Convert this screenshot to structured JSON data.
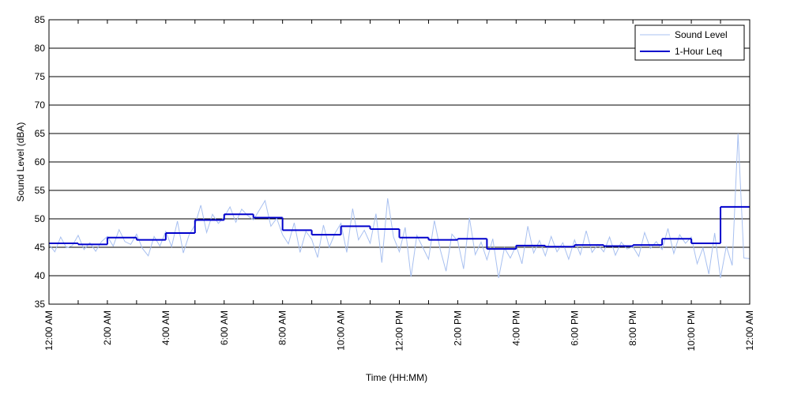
{
  "chart_data": {
    "type": "line",
    "xlabel": "Time (HH:MM)",
    "ylabel": "Sound Level (dBA)",
    "xlim": [
      0,
      24
    ],
    "xticks": [
      {
        "value": 0,
        "label": "12:00 AM"
      },
      {
        "value": 2,
        "label": "2:00 AM"
      },
      {
        "value": 4,
        "label": "4:00 AM"
      },
      {
        "value": 6,
        "label": "6:00 AM"
      },
      {
        "value": 8,
        "label": "8:00 AM"
      },
      {
        "value": 10,
        "label": "10:00 AM"
      },
      {
        "value": 12,
        "label": "12:00 PM"
      },
      {
        "value": 14,
        "label": "2:00 PM"
      },
      {
        "value": 16,
        "label": "4:00 PM"
      },
      {
        "value": 18,
        "label": "6:00 PM"
      },
      {
        "value": 20,
        "label": "8:00 PM"
      },
      {
        "value": 22,
        "label": "10:00 PM"
      },
      {
        "value": 24,
        "label": "12:00 AM"
      }
    ],
    "ylim": [
      35,
      85
    ],
    "yticks": [
      35,
      40,
      45,
      50,
      55,
      60,
      65,
      70,
      75,
      80,
      85
    ],
    "grid": true,
    "legend": "upper right",
    "series": [
      {
        "name": "Sound Level",
        "color": "#a8c0f0",
        "step": false,
        "x": [
          0,
          0.2,
          0.4,
          0.6,
          0.8,
          1,
          1.2,
          1.4,
          1.6,
          1.8,
          2,
          2.2,
          2.4,
          2.6,
          2.8,
          3,
          3.2,
          3.4,
          3.6,
          3.8,
          4,
          4.2,
          4.4,
          4.6,
          4.8,
          5,
          5.2,
          5.4,
          5.6,
          5.8,
          6,
          6.2,
          6.4,
          6.6,
          6.8,
          7,
          7.2,
          7.4,
          7.6,
          7.8,
          8,
          8.2,
          8.4,
          8.6,
          8.8,
          9,
          9.2,
          9.4,
          9.6,
          9.8,
          10,
          10.2,
          10.4,
          10.6,
          10.8,
          11,
          11.2,
          11.4,
          11.6,
          11.8,
          12,
          12.2,
          12.4,
          12.6,
          12.8,
          13,
          13.2,
          13.4,
          13.6,
          13.8,
          14,
          14.2,
          14.4,
          14.6,
          14.8,
          15,
          15.2,
          15.4,
          15.6,
          15.8,
          16,
          16.2,
          16.4,
          16.6,
          16.8,
          17,
          17.2,
          17.4,
          17.6,
          17.8,
          18,
          18.2,
          18.4,
          18.6,
          18.8,
          19,
          19.2,
          19.4,
          19.6,
          19.8,
          20,
          20.2,
          20.4,
          20.6,
          20.8,
          21,
          21.2,
          21.4,
          21.6,
          21.8,
          22,
          22.2,
          22.4,
          22.6,
          22.8,
          23,
          23.2,
          23.4,
          23.6,
          23.8,
          24
        ],
        "values": [
          45.5,
          44.2,
          46.8,
          44.9,
          45.3,
          47.1,
          44.6,
          45.8,
          44.3,
          46.0,
          46.9,
          45.2,
          48.1,
          46.0,
          45.5,
          47.3,
          44.8,
          43.5,
          46.9,
          45.2,
          47.8,
          45.1,
          49.6,
          44.0,
          47.2,
          48.9,
          52.4,
          47.6,
          50.8,
          49.2,
          50.3,
          52.1,
          49.4,
          51.7,
          50.6,
          49.8,
          51.5,
          53.2,
          48.7,
          50.1,
          47.2,
          45.6,
          49.3,
          44.1,
          47.8,
          46.4,
          43.2,
          48.9,
          45.0,
          47.5,
          49.2,
          44.1,
          51.8,
          46.3,
          48.0,
          45.7,
          50.9,
          42.3,
          53.6,
          46.8,
          44.2,
          48.5,
          39.8,
          47.1,
          45.0,
          42.9,
          49.7,
          44.6,
          40.8,
          47.3,
          46.1,
          41.2,
          50.2,
          43.7,
          45.9,
          42.8,
          46.5,
          39.6,
          44.9,
          43.1,
          45.3,
          42.1,
          48.7,
          44.0,
          46.2,
          43.5,
          46.9,
          44.2,
          45.8,
          42.9,
          46.3,
          43.7,
          47.9,
          44.1,
          45.5,
          44.2,
          46.8,
          43.6,
          45.9,
          44.7,
          45.1,
          43.4,
          47.6,
          44.8,
          46.0,
          44.6,
          48.3,
          43.9,
          47.2,
          45.7,
          46.8,
          42.1,
          44.9,
          40.3,
          47.5,
          39.6,
          45.2,
          41.8,
          65.0,
          43.1,
          43.0
        ]
      },
      {
        "name": "1-Hour Leq",
        "color": "#0000cc",
        "step": true,
        "x": [
          0,
          1,
          2,
          3,
          4,
          5,
          6,
          7,
          8,
          9,
          10,
          11,
          12,
          13,
          14,
          15,
          16,
          17,
          18,
          19,
          20,
          21,
          22,
          23
        ],
        "values": [
          45.7,
          45.5,
          46.7,
          46.3,
          47.5,
          49.8,
          50.8,
          50.2,
          48.0,
          47.2,
          48.7,
          48.2,
          46.7,
          46.3,
          46.5,
          44.7,
          45.3,
          45.1,
          45.4,
          45.2,
          45.4,
          46.5,
          45.7,
          52.1
        ]
      }
    ]
  }
}
